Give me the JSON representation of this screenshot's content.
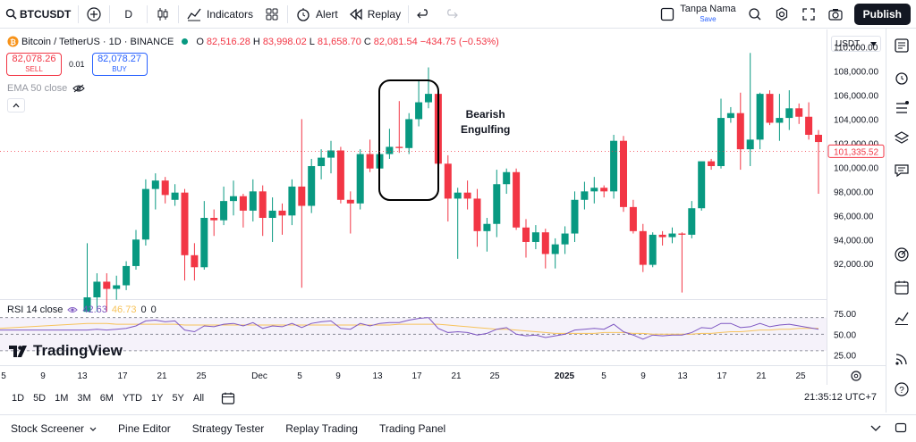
{
  "toolbar": {
    "symbol": "BTCUSDT",
    "interval": "D",
    "indicators_label": "Indicators",
    "alert_label": "Alert",
    "replay_label": "Replay",
    "user_name": "Tanpa Nama",
    "save_label": "Save",
    "publish_label": "Publish"
  },
  "legend": {
    "title": "Bitcoin / TetherUS · 1D · BINANCE",
    "o_label": "O",
    "o_value": "82,516.28",
    "h_label": "H",
    "h_value": "83,998.02",
    "l_label": "L",
    "l_value": "81,658.70",
    "c_label": "C",
    "c_value": "82,081.54",
    "change": "−434.75 (−0.53%)"
  },
  "trade": {
    "sell_price": "82,078.26",
    "sell_label": "SELL",
    "spread": "0.01",
    "buy_price": "82,078.27",
    "buy_label": "BUY"
  },
  "ema_label": "EMA 50 close",
  "currency": "USDT",
  "annotation": {
    "line1": "Bearish",
    "line2": "Engulfing"
  },
  "rsi": {
    "label": "RSI 14 close",
    "value1": "42.63",
    "value2": "46.73",
    "value3": "0",
    "value4": "0"
  },
  "brand": "TradingView",
  "ranges": [
    "1D",
    "5D",
    "1M",
    "3M",
    "6M",
    "YTD",
    "1Y",
    "5Y",
    "All"
  ],
  "clock": "21:35:12 UTC+7",
  "bottom_tabs": {
    "screener": "Stock Screener",
    "pine": "Pine Editor",
    "tester": "Strategy Tester",
    "replay": "Replay Trading",
    "panel": "Trading Panel"
  },
  "colors": {
    "up": "#089981",
    "down": "#f23645",
    "accent": "#2962ff",
    "rsi_line": "#7e57c2",
    "rsi_ma": "#f7c35b"
  },
  "chart_data": {
    "type": "candlestick",
    "price_axis": [
      "110,000.00",
      "108,000.00",
      "106,000.00",
      "104,000.00",
      "102,000.00",
      "100,000.00",
      "98,000.00",
      "96,000.00",
      "94,000.00",
      "92,000.00"
    ],
    "price_axis_values": [
      110000,
      108000,
      106000,
      104000,
      102000,
      100000,
      98000,
      96000,
      94000,
      92000
    ],
    "current_price_label": "101,335.52",
    "current_price": 101335.52,
    "rsi_axis": [
      "75.00",
      "50.00",
      "25.00"
    ],
    "x_ticks": [
      "5",
      "9",
      "13",
      "17",
      "21",
      "25",
      "Dec",
      "5",
      "9",
      "13",
      "17",
      "21",
      "25",
      "2025",
      "5",
      "9",
      "13",
      "17",
      "21",
      "25"
    ],
    "candles": [
      {
        "o": 88000,
        "h": 93700,
        "l": 88000,
        "c": 89200
      },
      {
        "o": 89200,
        "h": 91200,
        "l": 88000,
        "c": 90500
      },
      {
        "o": 90500,
        "h": 91200,
        "l": 88000,
        "c": 89900
      },
      {
        "o": 89900,
        "h": 91000,
        "l": 89000,
        "c": 90200
      },
      {
        "o": 90200,
        "h": 92200,
        "l": 89800,
        "c": 91800
      },
      {
        "o": 91800,
        "h": 94800,
        "l": 91500,
        "c": 94000
      },
      {
        "o": 94000,
        "h": 99000,
        "l": 93500,
        "c": 98200
      },
      {
        "o": 98200,
        "h": 99500,
        "l": 96500,
        "c": 98900
      },
      {
        "o": 98900,
        "h": 99200,
        "l": 97000,
        "c": 97700
      },
      {
        "o": 97300,
        "h": 98600,
        "l": 96800,
        "c": 97900
      },
      {
        "o": 97900,
        "h": 98200,
        "l": 90600,
        "c": 92700
      },
      {
        "o": 92700,
        "h": 93700,
        "l": 90600,
        "c": 91700
      },
      {
        "o": 91700,
        "h": 97200,
        "l": 91500,
        "c": 95800
      },
      {
        "o": 95800,
        "h": 96500,
        "l": 94300,
        "c": 95600
      },
      {
        "o": 95600,
        "h": 98400,
        "l": 95200,
        "c": 97200
      },
      {
        "o": 97200,
        "h": 98900,
        "l": 96000,
        "c": 97600
      },
      {
        "o": 97600,
        "h": 97800,
        "l": 95000,
        "c": 96400
      },
      {
        "o": 96400,
        "h": 99000,
        "l": 95500,
        "c": 98000
      },
      {
        "o": 98000,
        "h": 98500,
        "l": 94300,
        "c": 95800
      },
      {
        "o": 95800,
        "h": 97500,
        "l": 93800,
        "c": 96400
      },
      {
        "o": 96400,
        "h": 97000,
        "l": 94400,
        "c": 96000
      },
      {
        "o": 96000,
        "h": 99000,
        "l": 95200,
        "c": 98400
      },
      {
        "o": 98400,
        "h": 104000,
        "l": 90000,
        "c": 96800
      },
      {
        "o": 96800,
        "h": 100700,
        "l": 96200,
        "c": 100100
      },
      {
        "o": 100100,
        "h": 101500,
        "l": 99000,
        "c": 100800
      },
      {
        "o": 100800,
        "h": 102200,
        "l": 99500,
        "c": 101400
      },
      {
        "o": 101400,
        "h": 101700,
        "l": 97000,
        "c": 97300
      },
      {
        "o": 97300,
        "h": 98000,
        "l": 94500,
        "c": 97000
      },
      {
        "o": 97000,
        "h": 101500,
        "l": 96500,
        "c": 101100
      },
      {
        "o": 101100,
        "h": 102300,
        "l": 99600,
        "c": 99900
      },
      {
        "o": 99900,
        "h": 102300,
        "l": 99600,
        "c": 101100
      },
      {
        "o": 101100,
        "h": 103200,
        "l": 100700,
        "c": 101700
      },
      {
        "o": 101700,
        "h": 105500,
        "l": 101200,
        "c": 101600
      },
      {
        "o": 101600,
        "h": 104500,
        "l": 101100,
        "c": 104000
      },
      {
        "o": 104000,
        "h": 107200,
        "l": 103400,
        "c": 105400
      },
      {
        "o": 105400,
        "h": 108300,
        "l": 104900,
        "c": 106100
      },
      {
        "o": 106100,
        "h": 106300,
        "l": 100300,
        "c": 100300
      },
      {
        "o": 100300,
        "h": 101000,
        "l": 95500,
        "c": 97400
      },
      {
        "o": 97400,
        "h": 98300,
        "l": 92400,
        "c": 97900
      },
      {
        "o": 97900,
        "h": 98900,
        "l": 96500,
        "c": 97400
      },
      {
        "o": 97400,
        "h": 98200,
        "l": 93400,
        "c": 94700
      },
      {
        "o": 94700,
        "h": 95800,
        "l": 93000,
        "c": 95300
      },
      {
        "o": 95300,
        "h": 99800,
        "l": 94200,
        "c": 98600
      },
      {
        "o": 98600,
        "h": 99900,
        "l": 97800,
        "c": 99600
      },
      {
        "o": 99600,
        "h": 99900,
        "l": 94800,
        "c": 95000
      },
      {
        "o": 95000,
        "h": 95700,
        "l": 92500,
        "c": 93800
      },
      {
        "o": 93800,
        "h": 95200,
        "l": 93200,
        "c": 94600
      },
      {
        "o": 94600,
        "h": 94900,
        "l": 91600,
        "c": 92800
      },
      {
        "o": 92800,
        "h": 94100,
        "l": 91600,
        "c": 93600
      },
      {
        "o": 93600,
        "h": 95100,
        "l": 92800,
        "c": 94500
      },
      {
        "o": 94500,
        "h": 98000,
        "l": 93800,
        "c": 97300
      },
      {
        "o": 97300,
        "h": 98800,
        "l": 96500,
        "c": 98000
      },
      {
        "o": 98000,
        "h": 99200,
        "l": 97000,
        "c": 98300
      },
      {
        "o": 98300,
        "h": 98500,
        "l": 97500,
        "c": 98000
      },
      {
        "o": 98000,
        "h": 102700,
        "l": 97400,
        "c": 102200
      },
      {
        "o": 102200,
        "h": 102600,
        "l": 96300,
        "c": 96700
      },
      {
        "o": 96700,
        "h": 97300,
        "l": 94500,
        "c": 94700
      },
      {
        "o": 94700,
        "h": 95300,
        "l": 91300,
        "c": 91900
      },
      {
        "o": 91900,
        "h": 94600,
        "l": 91700,
        "c": 94400
      },
      {
        "o": 94400,
        "h": 94700,
        "l": 93500,
        "c": 94200
      },
      {
        "o": 94200,
        "h": 95000,
        "l": 93700,
        "c": 94500
      },
      {
        "o": 94500,
        "h": 94600,
        "l": 89600,
        "c": 94400
      },
      {
        "o": 94400,
        "h": 97200,
        "l": 94100,
        "c": 96600
      },
      {
        "o": 96600,
        "h": 100300,
        "l": 96400,
        "c": 100500
      },
      {
        "o": 100500,
        "h": 100700,
        "l": 99800,
        "c": 100100
      },
      {
        "o": 100100,
        "h": 105700,
        "l": 99900,
        "c": 104100
      },
      {
        "o": 104100,
        "h": 105000,
        "l": 103700,
        "c": 104500
      },
      {
        "o": 104500,
        "h": 106200,
        "l": 99800,
        "c": 101500
      },
      {
        "o": 101500,
        "h": 109500,
        "l": 100100,
        "c": 102300
      },
      {
        "o": 102300,
        "h": 106200,
        "l": 101500,
        "c": 106100
      },
      {
        "o": 106100,
        "h": 106400,
        "l": 103500,
        "c": 103700
      },
      {
        "o": 103700,
        "h": 106100,
        "l": 102200,
        "c": 104100
      },
      {
        "o": 104100,
        "h": 106400,
        "l": 103100,
        "c": 104900
      },
      {
        "o": 104900,
        "h": 105300,
        "l": 103600,
        "c": 104200
      },
      {
        "o": 104200,
        "h": 105400,
        "l": 102300,
        "c": 102700
      },
      {
        "o": 102700,
        "h": 103100,
        "l": 97800,
        "c": 102100
      }
    ],
    "rsi_values": [
      55,
      56,
      55,
      56,
      57,
      60,
      66,
      67,
      65,
      66,
      55,
      53,
      60,
      59,
      62,
      63,
      60,
      64,
      57,
      60,
      59,
      63,
      58,
      63,
      65,
      66,
      57,
      56,
      63,
      60,
      63,
      64,
      64,
      67,
      69,
      70,
      57,
      52,
      53,
      52,
      49,
      51,
      56,
      58,
      50,
      48,
      49,
      46,
      48,
      50,
      55,
      56,
      57,
      56,
      62,
      53,
      49,
      44,
      49,
      48,
      49,
      49,
      52,
      58,
      57,
      63,
      63,
      58,
      59,
      63,
      59,
      61,
      62,
      60,
      58,
      56
    ],
    "rsi_ma_values": [
      63,
      63,
      63,
      62,
      62,
      62,
      62,
      62,
      62,
      62,
      61,
      61,
      61,
      61,
      61,
      61,
      61,
      61,
      61,
      61,
      61,
      61,
      61,
      61,
      61,
      61,
      61,
      61,
      61,
      61,
      61,
      61,
      62,
      62,
      62,
      62,
      62,
      61,
      60,
      59,
      58,
      57,
      56,
      56,
      55,
      54,
      53,
      52,
      51,
      51,
      51,
      51,
      51,
      52,
      52,
      52,
      51,
      51,
      50,
      50,
      50,
      50,
      50,
      51,
      51,
      52,
      53,
      53,
      54,
      55,
      55,
      56,
      56,
      57,
      57,
      57
    ]
  }
}
